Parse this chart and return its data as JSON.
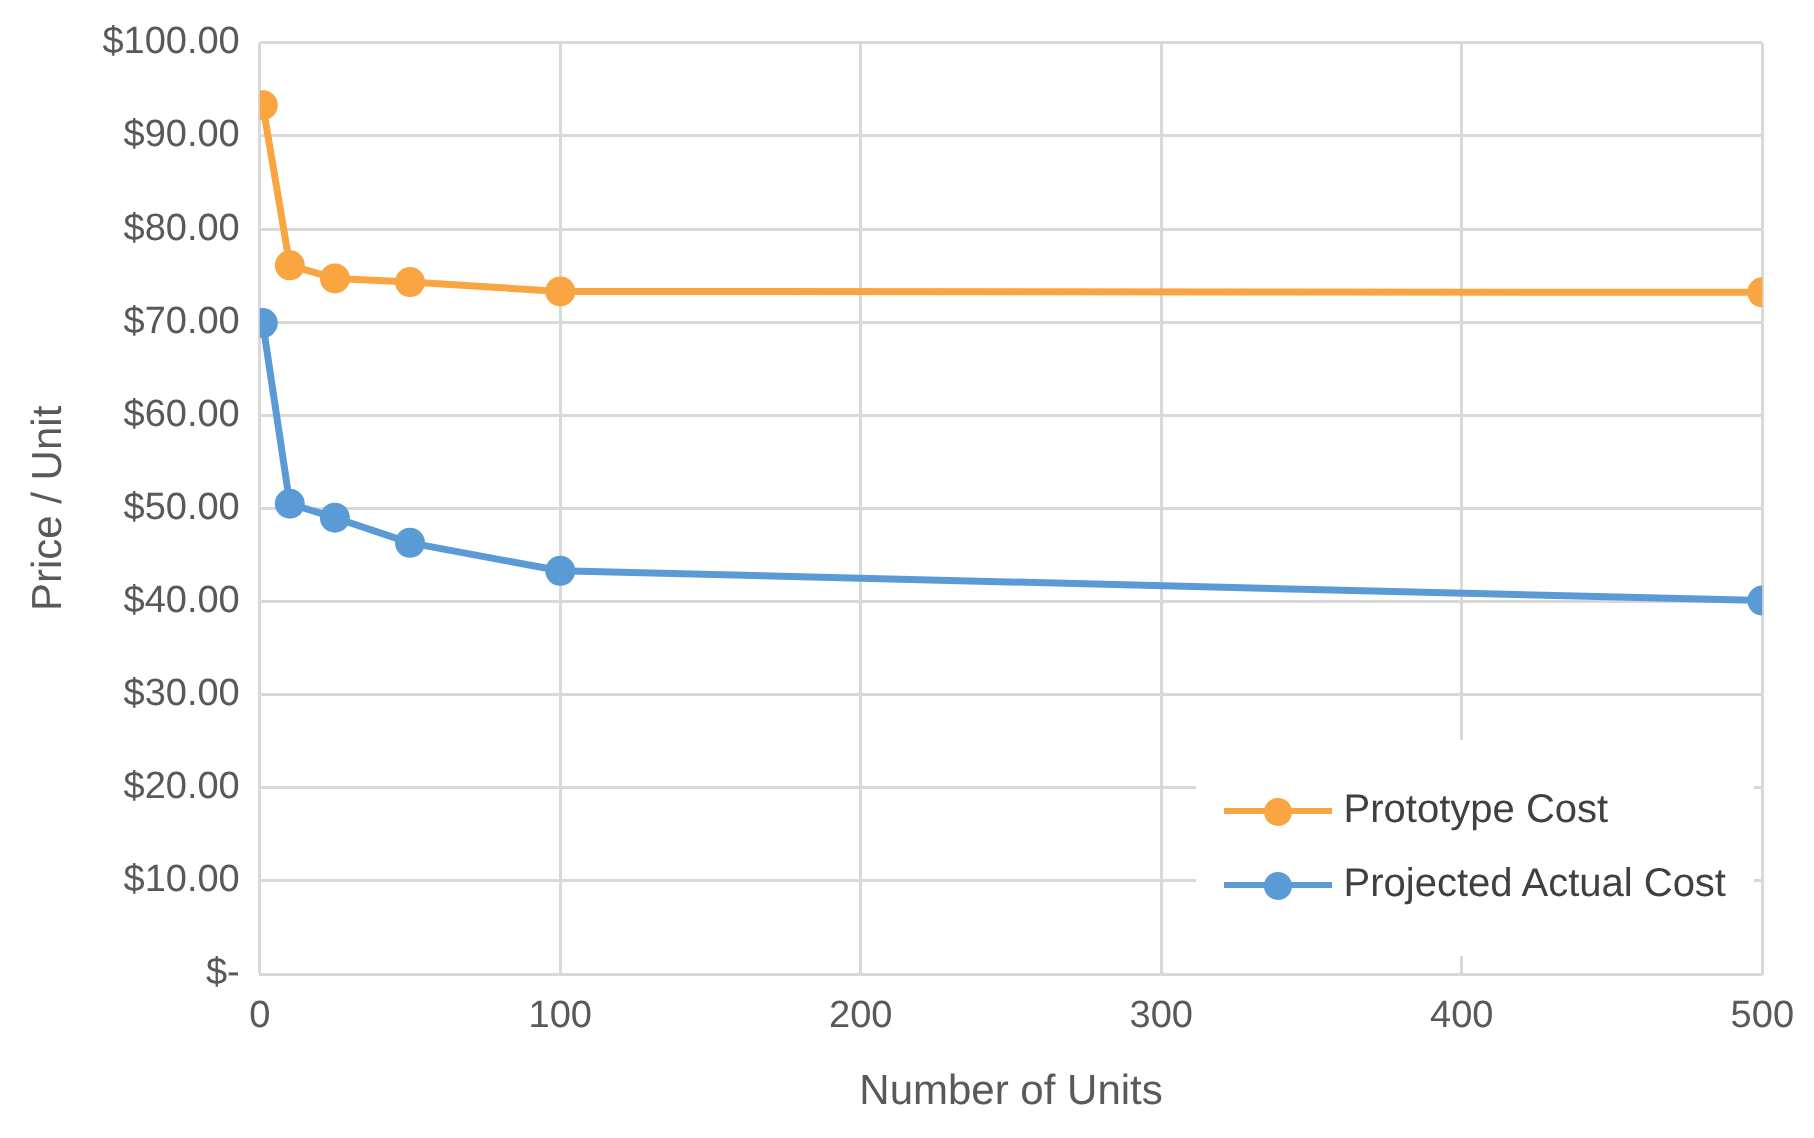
{
  "chart_data": {
    "type": "line",
    "xlabel": "Number of Units",
    "ylabel": "Price / Unit",
    "x": [
      1,
      10,
      25,
      50,
      100,
      500
    ],
    "series": [
      {
        "name": "Prototype Cost",
        "color": "#f9a541",
        "values": [
          93.3,
          76.1,
          74.7,
          74.3,
          73.3,
          73.2
        ]
      },
      {
        "name": "Projected Actual Cost",
        "color": "#5b9bd5",
        "values": [
          69.9,
          50.5,
          49.0,
          46.3,
          43.3,
          40.1
        ]
      }
    ],
    "xlim": [
      0,
      500
    ],
    "xticks": [
      0,
      100,
      200,
      300,
      400,
      500
    ],
    "ylim": [
      0,
      100
    ],
    "yticks": [
      {
        "value": 0,
        "label": "$-"
      },
      {
        "value": 10,
        "label": "$10.00"
      },
      {
        "value": 20,
        "label": "$20.00"
      },
      {
        "value": 30,
        "label": "$30.00"
      },
      {
        "value": 40,
        "label": "$40.00"
      },
      {
        "value": 50,
        "label": "$50.00"
      },
      {
        "value": 60,
        "label": "$60.00"
      },
      {
        "value": 70,
        "label": "$70.00"
      },
      {
        "value": 80,
        "label": "$80.00"
      },
      {
        "value": 90,
        "label": "$90.00"
      },
      {
        "value": 100,
        "label": "$100.00"
      }
    ],
    "grid": true,
    "legend": "bottom right",
    "marker": "circle",
    "line_style": "solid"
  }
}
